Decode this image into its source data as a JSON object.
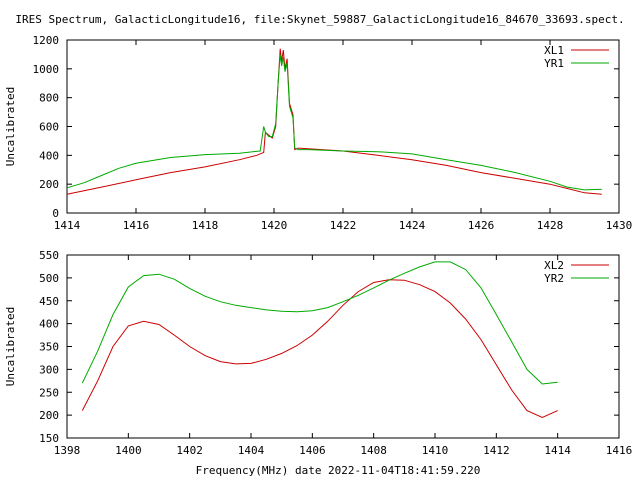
{
  "title": "IRES Spectrum, GalacticLongitude16, file:Skynet_59887_GalacticLongitude16_84670_33693.spect.",
  "xlabel": "Frequency(MHz) date 2022-11-04T18:41:59.220",
  "colors": {
    "red": "#cc0000",
    "green": "#00aa00"
  },
  "chart_data": [
    {
      "type": "line",
      "ylabel": "Uncalibrated",
      "xlim": [
        1414,
        1430
      ],
      "ylim": [
        0,
        1200
      ],
      "xticks": [
        1414,
        1416,
        1418,
        1420,
        1422,
        1424,
        1426,
        1428,
        1430
      ],
      "yticks": [
        0,
        200,
        400,
        600,
        800,
        1000,
        1200
      ],
      "legend_position": "top-right",
      "series": [
        {
          "name": "XL1",
          "color": "#cc0000",
          "x": [
            1414.0,
            1415.0,
            1416.0,
            1417.0,
            1418.0,
            1419.0,
            1419.5,
            1419.7,
            1419.75,
            1419.85,
            1419.95,
            1420.05,
            1420.12,
            1420.18,
            1420.22,
            1420.27,
            1420.32,
            1420.38,
            1420.45,
            1420.55,
            1420.6,
            1420.7,
            1421.0,
            1422.0,
            1423.0,
            1424.0,
            1425.0,
            1426.0,
            1427.0,
            1428.0,
            1428.5,
            1429.0,
            1429.5
          ],
          "y": [
            130,
            180,
            230,
            280,
            320,
            370,
            400,
            420,
            560,
            540,
            520,
            600,
            900,
            1140,
            1050,
            1130,
            1000,
            1070,
            760,
            680,
            440,
            450,
            445,
            430,
            400,
            370,
            330,
            280,
            240,
            200,
            170,
            140,
            130
          ]
        },
        {
          "name": "YR1",
          "color": "#00aa00",
          "x": [
            1414.0,
            1414.5,
            1415.0,
            1415.5,
            1416.0,
            1417.0,
            1418.0,
            1419.0,
            1419.6,
            1419.7,
            1419.75,
            1419.85,
            1419.95,
            1420.05,
            1420.12,
            1420.18,
            1420.22,
            1420.27,
            1420.32,
            1420.38,
            1420.45,
            1420.55,
            1420.6,
            1420.7,
            1421.0,
            1422.0,
            1423.0,
            1424.0,
            1425.0,
            1426.0,
            1427.0,
            1428.0,
            1428.5,
            1429.0,
            1429.5
          ],
          "y": [
            175,
            210,
            260,
            310,
            345,
            385,
            405,
            415,
            430,
            600,
            560,
            530,
            530,
            620,
            900,
            1100,
            1020,
            1080,
            980,
            1040,
            740,
            660,
            450,
            440,
            440,
            430,
            425,
            410,
            370,
            330,
            280,
            220,
            180,
            160,
            165
          ]
        }
      ]
    },
    {
      "type": "line",
      "ylabel": "Uncalibrated",
      "xlim": [
        1398,
        1416
      ],
      "ylim": [
        150,
        550
      ],
      "xticks": [
        1398,
        1400,
        1402,
        1404,
        1406,
        1408,
        1410,
        1412,
        1414,
        1416
      ],
      "yticks": [
        150,
        200,
        250,
        300,
        350,
        400,
        450,
        500,
        550
      ],
      "legend_position": "top-right",
      "series": [
        {
          "name": "XL2",
          "color": "#cc0000",
          "x": [
            1398.5,
            1399.0,
            1399.5,
            1400.0,
            1400.5,
            1401.0,
            1401.5,
            1402.0,
            1402.5,
            1403.0,
            1403.5,
            1404.0,
            1404.5,
            1405.0,
            1405.5,
            1406.0,
            1406.5,
            1407.0,
            1407.5,
            1408.0,
            1408.5,
            1409.0,
            1409.5,
            1410.0,
            1410.5,
            1411.0,
            1411.5,
            1412.0,
            1412.5,
            1413.0,
            1413.5,
            1414.0
          ],
          "y": [
            210,
            275,
            350,
            395,
            405,
            398,
            375,
            350,
            330,
            317,
            312,
            313,
            322,
            335,
            352,
            375,
            405,
            440,
            470,
            490,
            496,
            495,
            485,
            470,
            445,
            410,
            365,
            310,
            255,
            210,
            195,
            210
          ]
        },
        {
          "name": "YR2",
          "color": "#00aa00",
          "x": [
            1398.5,
            1399.0,
            1399.5,
            1400.0,
            1400.5,
            1401.0,
            1401.5,
            1402.0,
            1402.5,
            1403.0,
            1403.5,
            1404.0,
            1404.5,
            1405.0,
            1405.5,
            1406.0,
            1406.5,
            1407.0,
            1407.5,
            1408.0,
            1408.5,
            1409.0,
            1409.5,
            1410.0,
            1410.5,
            1411.0,
            1411.5,
            1412.0,
            1412.5,
            1413.0,
            1413.5,
            1414.0
          ],
          "y": [
            270,
            340,
            420,
            480,
            505,
            508,
            497,
            477,
            460,
            448,
            440,
            435,
            430,
            427,
            426,
            428,
            435,
            448,
            462,
            478,
            495,
            510,
            524,
            535,
            535,
            518,
            478,
            420,
            360,
            300,
            268,
            272
          ]
        }
      ]
    }
  ]
}
